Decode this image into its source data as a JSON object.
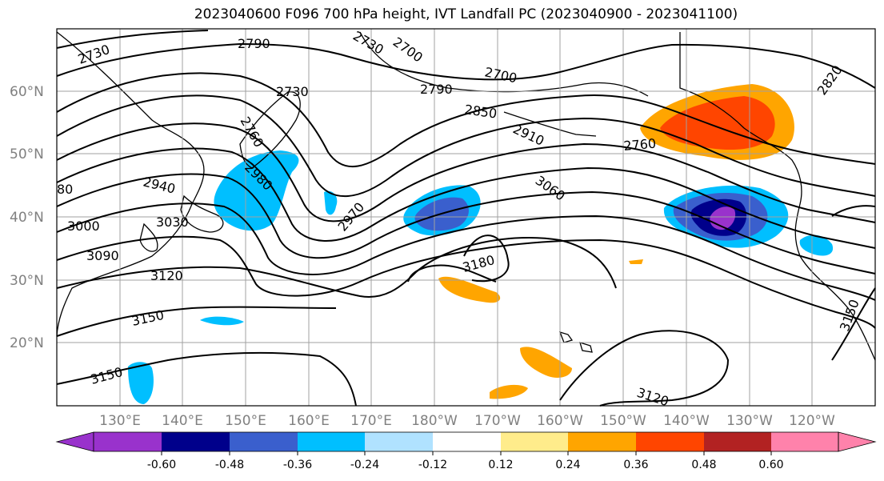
{
  "title": "2023040600 F096 700 hPa height, IVT Landfall PC (2023040900 - 2023041100)",
  "map": {
    "latitude_labels": [
      "60°N",
      "50°N",
      "40°N",
      "30°N",
      "20°N"
    ],
    "longitude_labels": [
      "130°E",
      "140°E",
      "150°E",
      "160°E",
      "170°E",
      "180°W",
      "170°W",
      "160°W",
      "150°W",
      "140°W",
      "130°W",
      "120°W"
    ],
    "contour_labels": [
      "2730",
      "2790",
      "2730",
      "2700",
      "2790",
      "2850",
      "2910",
      "2760",
      "2820",
      "2700",
      "2760",
      "2940",
      "2980",
      "3000",
      "3030",
      "3090",
      "3120",
      "3150",
      "2970",
      "3060",
      "3180",
      "3150",
      "3150",
      "3120",
      "80",
      "2730"
    ],
    "colors": {
      "land_outline": "#000000",
      "grid": "#a0a0a0",
      "contour": "#000000"
    }
  },
  "colorbar": {
    "ticks": [
      "-0.60",
      "-0.48",
      "-0.36",
      "-0.24",
      "-0.12",
      "0.12",
      "0.24",
      "0.36",
      "0.48",
      "0.60"
    ],
    "colors": [
      "#9932cc",
      "#00008b",
      "#3a5fcd",
      "#00bfff",
      "#b0e2ff",
      "#ffffff",
      "#ffec8b",
      "#ffa500",
      "#ff4500",
      "#b22222",
      "#ff82ab"
    ]
  }
}
